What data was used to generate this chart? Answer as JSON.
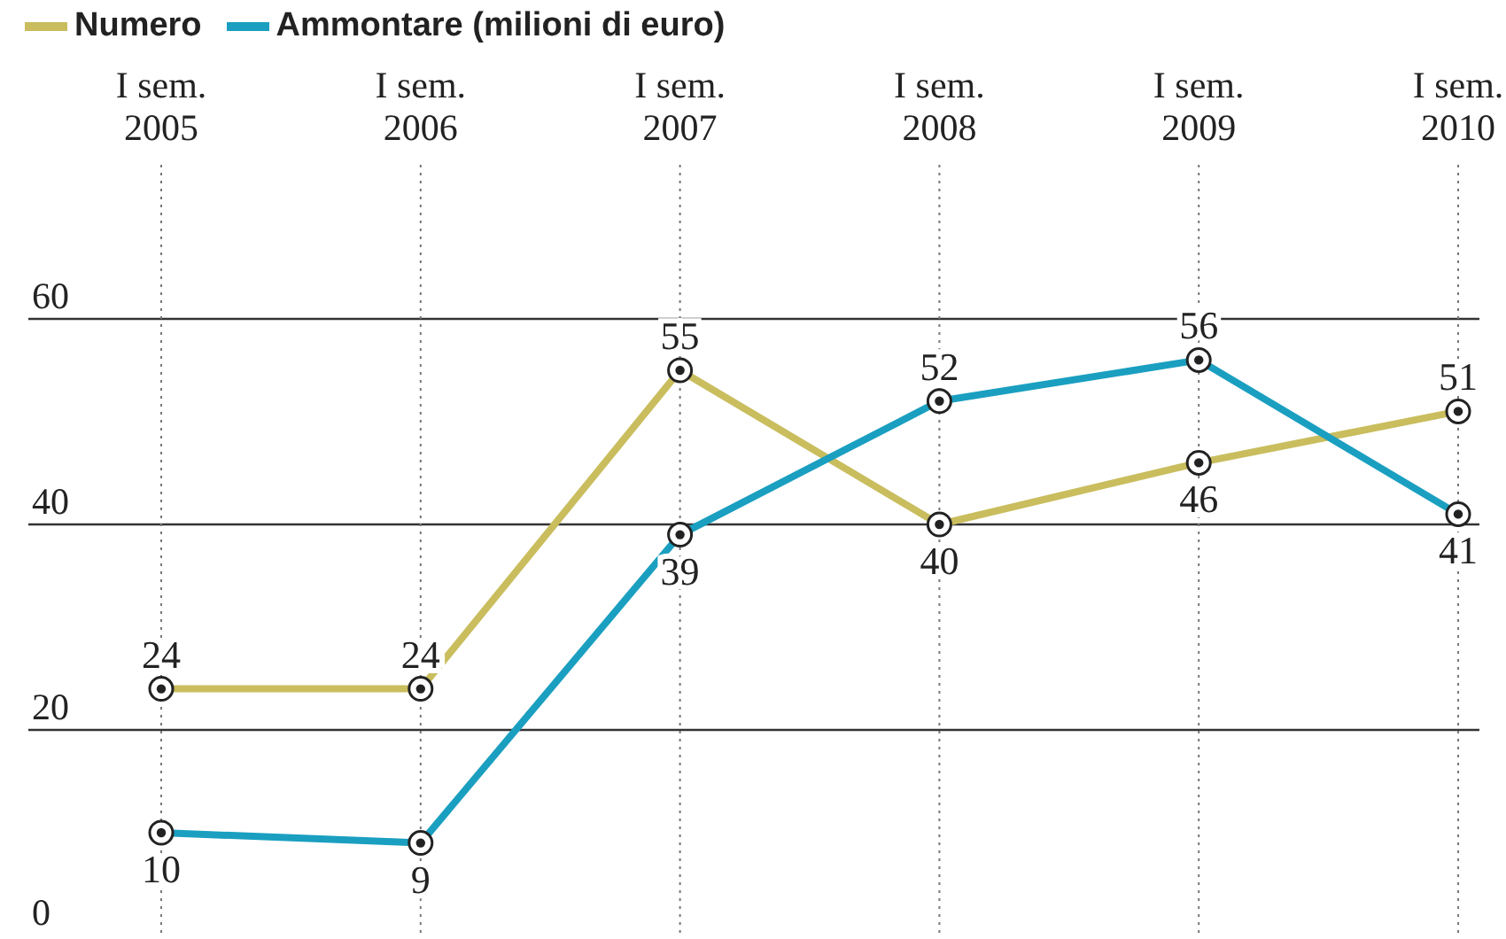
{
  "chart_data": {
    "type": "line",
    "categories": [
      "I sem. 2005",
      "I sem. 2006",
      "I sem. 2007",
      "I sem. 2008",
      "I sem. 2009",
      "I sem. 2010"
    ],
    "series": [
      {
        "name": "Numero",
        "color": "#c9bd5e",
        "values": [
          24,
          24,
          55,
          40,
          46,
          51
        ]
      },
      {
        "name": "Ammontare (milioni di euro)",
        "color": "#1a9fc0",
        "values": [
          10,
          9,
          39,
          52,
          56,
          41
        ]
      }
    ],
    "ylim": [
      0,
      75
    ],
    "yticks": [
      0,
      20,
      40,
      60
    ],
    "grid": true,
    "legend": "top left",
    "marker": "circle",
    "line_style": "solid",
    "data_labels": true
  }
}
